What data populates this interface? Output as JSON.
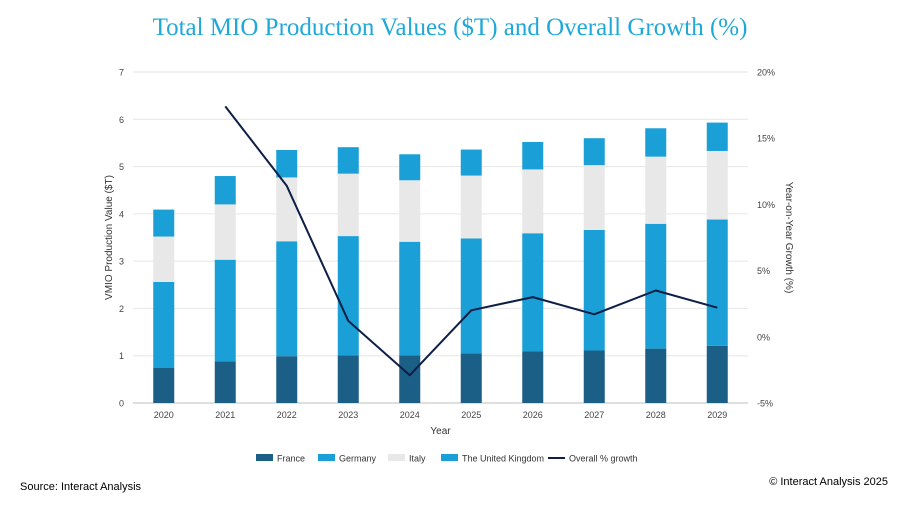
{
  "chart_data": {
    "type": "bar",
    "title": "Total MIO Production Values ($T) and Overall Growth (%)",
    "xlabel": "Year",
    "ylabel": "VMIO Production Value ($T)",
    "y2label": "Year-on-Year Growth (%)",
    "categories": [
      "2020",
      "2021",
      "2022",
      "2023",
      "2024",
      "2025",
      "2026",
      "2027",
      "2028",
      "2029"
    ],
    "ylim": [
      0,
      7
    ],
    "yticks": [
      "0",
      "1",
      "2",
      "3",
      "4",
      "5",
      "6",
      "7"
    ],
    "y2lim": [
      -5,
      20
    ],
    "y2ticks": [
      "-5%",
      "0%",
      "5%",
      "10%",
      "15%",
      "20%"
    ],
    "stacked": true,
    "grid": true,
    "legend_position": "bottom",
    "series": [
      {
        "name": "France",
        "color": "#1b5f86",
        "values": [
          0.74,
          0.88,
          0.99,
          1.01,
          1.01,
          1.05,
          1.09,
          1.11,
          1.15,
          1.21
        ]
      },
      {
        "name": "Germany",
        "color": "#1a9fd6",
        "values": [
          1.82,
          2.15,
          2.43,
          2.52,
          2.4,
          2.43,
          2.5,
          2.55,
          2.64,
          2.67
        ]
      },
      {
        "name": "Italy",
        "color": "#e8e8e8",
        "values": [
          0.96,
          1.17,
          1.35,
          1.32,
          1.3,
          1.33,
          1.35,
          1.37,
          1.42,
          1.45
        ]
      },
      {
        "name": "The United Kingdom",
        "color": "#1a9fd6",
        "values": [
          0.57,
          0.6,
          0.58,
          0.56,
          0.55,
          0.55,
          0.58,
          0.57,
          0.6,
          0.6
        ]
      }
    ],
    "line_series": {
      "name": "Overall % growth",
      "color": "#0d1f45",
      "axis": "right",
      "x": [
        "2021",
        "2022",
        "2023",
        "2024",
        "2025",
        "2026",
        "2027",
        "2028",
        "2029"
      ],
      "values": [
        17.4,
        11.4,
        1.2,
        -2.9,
        2.0,
        3.0,
        1.7,
        3.5,
        2.2
      ]
    }
  },
  "footer": {
    "source": "Source: Interact Analysis",
    "copyright": "© Interact Analysis 2025"
  }
}
